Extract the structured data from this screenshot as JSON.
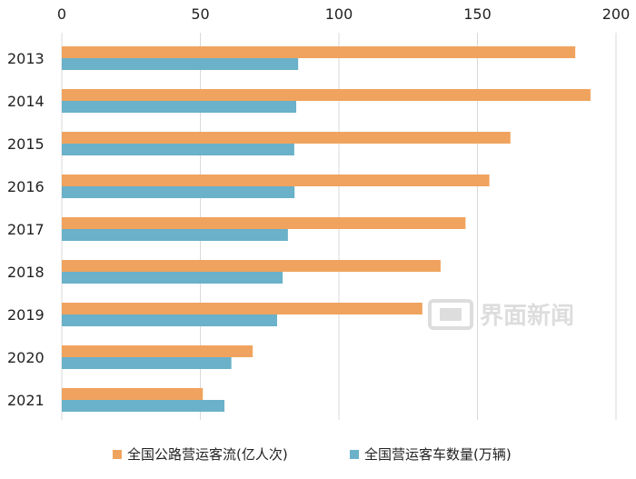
{
  "chart_data": {
    "type": "bar",
    "orientation": "horizontal",
    "categories": [
      "2013",
      "2014",
      "2015",
      "2016",
      "2017",
      "2018",
      "2019",
      "2020",
      "2021"
    ],
    "series": [
      {
        "name": "全国公路营运客流(亿人次)",
        "color": "#f0a35e",
        "values": [
          185.3,
          190.8,
          161.9,
          154.3,
          145.7,
          136.7,
          130.1,
          68.9,
          50.9
        ]
      },
      {
        "name": "全国营运客车数量(万辆)",
        "color": "#6ab1c9",
        "values": [
          85.3,
          84.6,
          83.9,
          84.0,
          81.6,
          79.7,
          77.7,
          61.2,
          58.7
        ]
      }
    ],
    "xlim": [
      0,
      200
    ],
    "xticks": [
      0,
      50,
      100,
      150,
      200
    ],
    "grid": true,
    "legend_position": "bottom"
  },
  "watermark": {
    "text": "界面新闻",
    "icon": "jiemian-logo-icon"
  }
}
